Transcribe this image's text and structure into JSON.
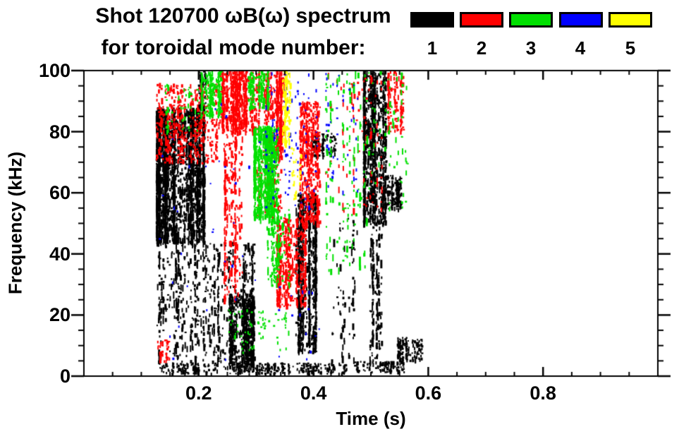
{
  "title_line1": "Shot 120700 ωB(ω) spectrum",
  "title_line2": "for toroidal mode number:",
  "legend": {
    "entries": [
      {
        "label": "1",
        "color": "#000000"
      },
      {
        "label": "2",
        "color": "#ff0000"
      },
      {
        "label": "3",
        "color": "#00e000"
      },
      {
        "label": "4",
        "color": "#0000ff"
      },
      {
        "label": "5",
        "color": "#ffff00"
      }
    ]
  },
  "chart_data": {
    "type": "scatter",
    "title": "Shot 120700 ωB(ω) spectrum for toroidal mode number: 1-5",
    "xlabel": "Time (s)",
    "ylabel": "Frequency (kHz)",
    "xlim": [
      0.0,
      1.0
    ],
    "ylim": [
      0,
      100
    ],
    "x_major_ticks": [
      0.2,
      0.4,
      0.6,
      0.8
    ],
    "x_tick_labels": [
      "0.2",
      "0.4",
      "0.6",
      "0.8"
    ],
    "x_minor_step": 0.05,
    "y_major_ticks": [
      0,
      20,
      40,
      60,
      80,
      100
    ],
    "y_tick_labels": [
      "0",
      "20",
      "40",
      "60",
      "80",
      "100"
    ],
    "y_minor_step": 5,
    "grid": false,
    "legend_position": "top-right",
    "mode_colors": {
      "1": "#000000",
      "2": "#ff0000",
      "3": "#00e000",
      "4": "#0000ff",
      "5": "#ffff00"
    },
    "clusters": [
      {
        "mode": 1,
        "t": [
          0.125,
          0.212
        ],
        "f": [
          44,
          88
        ],
        "n": 2600,
        "streak": 0.8
      },
      {
        "mode": 1,
        "t": [
          0.125,
          0.3
        ],
        "f": [
          5,
          44
        ],
        "n": 650,
        "streak": 0.9
      },
      {
        "mode": 1,
        "t": [
          0.198,
          0.215
        ],
        "f": [
          88,
          100
        ],
        "n": 90,
        "streak": 0.5
      },
      {
        "mode": 1,
        "t": [
          0.252,
          0.298
        ],
        "f": [
          4,
          27
        ],
        "n": 650,
        "streak": 0.5
      },
      {
        "mode": 1,
        "t": [
          0.13,
          0.46
        ],
        "f": [
          1,
          4.5
        ],
        "n": 450,
        "streak": 0.2
      },
      {
        "mode": 1,
        "t": [
          0.368,
          0.408
        ],
        "f": [
          8,
          60
        ],
        "n": 850,
        "streak": 0.7
      },
      {
        "mode": 1,
        "t": [
          0.395,
          0.44
        ],
        "f": [
          72,
          80
        ],
        "n": 130,
        "streak": 0.4
      },
      {
        "mode": 1,
        "t": [
          0.486,
          0.528
        ],
        "f": [
          50,
          100
        ],
        "n": 1100,
        "streak": 0.7
      },
      {
        "mode": 1,
        "t": [
          0.497,
          0.522
        ],
        "f": [
          4,
          50
        ],
        "n": 160,
        "streak": 0.9
      },
      {
        "mode": 1,
        "t": [
          0.545,
          0.592
        ],
        "f": [
          5,
          13
        ],
        "n": 150,
        "streak": 0.3
      },
      {
        "mode": 1,
        "t": [
          0.52,
          0.556
        ],
        "f": [
          55,
          66
        ],
        "n": 160,
        "streak": 0.4
      },
      {
        "mode": 1,
        "t": [
          0.43,
          0.478
        ],
        "f": [
          5,
          52
        ],
        "n": 70,
        "streak": 0.9
      },
      {
        "mode": 1,
        "t": [
          0.47,
          0.56
        ],
        "f": [
          1.5,
          5
        ],
        "n": 120,
        "streak": 0.2
      },
      {
        "mode": 2,
        "t": [
          0.125,
          0.235
        ],
        "f": [
          70,
          96
        ],
        "n": 500,
        "streak": 0.4
      },
      {
        "mode": 2,
        "t": [
          0.232,
          0.306
        ],
        "f": [
          80,
          100
        ],
        "n": 750,
        "streak": 0.5
      },
      {
        "mode": 2,
        "t": [
          0.243,
          0.278
        ],
        "f": [
          25,
          80
        ],
        "n": 260,
        "streak": 0.8
      },
      {
        "mode": 2,
        "t": [
          0.312,
          0.35
        ],
        "f": [
          72,
          100
        ],
        "n": 420,
        "streak": 0.7
      },
      {
        "mode": 2,
        "t": [
          0.335,
          0.388
        ],
        "f": [
          23,
          52
        ],
        "n": 550,
        "streak": 0.5
      },
      {
        "mode": 2,
        "t": [
          0.375,
          0.414
        ],
        "f": [
          50,
          90
        ],
        "n": 520,
        "streak": 0.6
      },
      {
        "mode": 2,
        "t": [
          0.528,
          0.558
        ],
        "f": [
          80,
          100
        ],
        "n": 160,
        "streak": 0.5
      },
      {
        "mode": 2,
        "t": [
          0.42,
          0.52
        ],
        "f": [
          55,
          100
        ],
        "n": 90,
        "streak": 0.8
      },
      {
        "mode": 2,
        "t": [
          0.127,
          0.15
        ],
        "f": [
          5,
          12
        ],
        "n": 45,
        "streak": 0.3
      },
      {
        "mode": 2,
        "t": [
          0.3,
          0.35
        ],
        "f": [
          52,
          72
        ],
        "n": 120,
        "streak": 0.5
      },
      {
        "mode": 3,
        "t": [
          0.203,
          0.242
        ],
        "f": [
          85,
          100
        ],
        "n": 260,
        "streak": 0.4
      },
      {
        "mode": 3,
        "t": [
          0.285,
          0.325
        ],
        "f": [
          88,
          100
        ],
        "n": 220,
        "streak": 0.4
      },
      {
        "mode": 3,
        "t": [
          0.295,
          0.342
        ],
        "f": [
          52,
          82
        ],
        "n": 850,
        "streak": 0.6
      },
      {
        "mode": 3,
        "t": [
          0.318,
          0.362
        ],
        "f": [
          30,
          55
        ],
        "n": 160,
        "streak": 0.6
      },
      {
        "mode": 3,
        "t": [
          0.25,
          0.36
        ],
        "f": [
          8,
          22
        ],
        "n": 70,
        "streak": 0.3
      },
      {
        "mode": 3,
        "t": [
          0.42,
          0.5
        ],
        "f": [
          35,
          100
        ],
        "n": 140,
        "streak": 0.9
      },
      {
        "mode": 3,
        "t": [
          0.5,
          0.57
        ],
        "f": [
          55,
          100
        ],
        "n": 60,
        "streak": 0.6
      },
      {
        "mode": 3,
        "t": [
          0.14,
          0.2
        ],
        "f": [
          80,
          96
        ],
        "n": 50,
        "streak": 0.4
      },
      {
        "mode": 4,
        "t": [
          0.315,
          0.41
        ],
        "f": [
          55,
          100
        ],
        "n": 100,
        "streak": 0.3
      },
      {
        "mode": 4,
        "t": [
          0.42,
          0.48
        ],
        "f": [
          60,
          100
        ],
        "n": 40,
        "streak": 0.3
      },
      {
        "mode": 4,
        "t": [
          0.13,
          0.31
        ],
        "f": [
          5,
          95
        ],
        "n": 35,
        "streak": 0.2
      },
      {
        "mode": 4,
        "t": [
          0.33,
          0.42
        ],
        "f": [
          5,
          30
        ],
        "n": 15,
        "streak": 0.2
      },
      {
        "mode": 5,
        "t": [
          0.345,
          0.363
        ],
        "f": [
          76,
          100
        ],
        "n": 130,
        "streak": 0.5
      },
      {
        "mode": 5,
        "t": [
          0.36,
          0.385
        ],
        "f": [
          58,
          76
        ],
        "n": 30,
        "streak": 0.3
      }
    ]
  }
}
